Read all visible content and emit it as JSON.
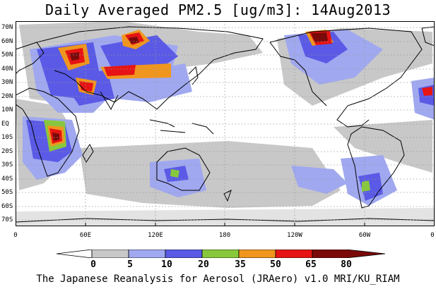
{
  "title": "Daily Averaged PM2.5 [ug/m3]: 14Aug2013",
  "footer": "The Japanese Reanalysis for Aerosol (JRAero) v1.0 MRI/KU_RIAM",
  "lat_labels": [
    "70N",
    "60N",
    "50N",
    "40N",
    "30N",
    "20N",
    "10N",
    "EQ",
    "10S",
    "20S",
    "30S",
    "40S",
    "50S",
    "60S",
    "70S"
  ],
  "lon_labels": [
    "0",
    "60E",
    "120E",
    "180",
    "120W",
    "60W",
    "0"
  ],
  "colorbar": {
    "levels": [
      "0",
      "5",
      "10",
      "20",
      "35",
      "50",
      "65",
      "80"
    ],
    "colors": [
      "#ffffff",
      "#c8c8c8",
      "#a0a8f0",
      "#5a5ae6",
      "#88c83c",
      "#f0961e",
      "#e61414",
      "#7a0a0a"
    ]
  },
  "colors": {
    "land_outline": "#000000",
    "grid": "#999999"
  }
}
